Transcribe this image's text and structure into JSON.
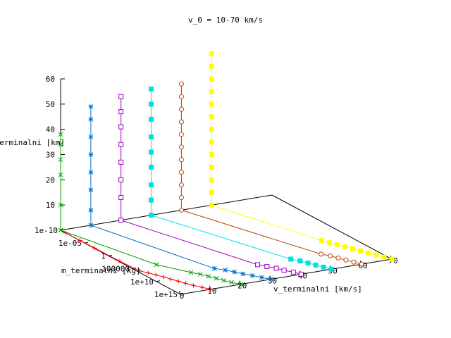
{
  "chart_data": {
    "type": "scatter",
    "title": "v_0 = 10-70 km/s",
    "xlabel": "v_terminalni [km/s]",
    "ylabel": "m_terminalni [kg]",
    "zlabel": "h_terminalni [km]",
    "x_ticks": [
      "0",
      "10",
      "20",
      "30",
      "40",
      "50",
      "60",
      "70"
    ],
    "y_ticks": [
      "1e-10",
      "1e-05",
      "1",
      "100000",
      "1e+10",
      "1e+15"
    ],
    "z_ticks": [
      "10",
      "20",
      "30",
      "40",
      "50",
      "60"
    ],
    "xlim": [
      0,
      70
    ],
    "ylim": [
      "1e-10",
      "1e+15"
    ],
    "zlim": [
      0,
      60
    ],
    "grid": false,
    "legend": "none",
    "series": [
      {
        "color": "#ff0000",
        "marker": "plus",
        "points": [
          {
            "v": 10.0,
            "m": "1e+15",
            "h": 0
          },
          {
            "v": 8.8,
            "m": "1e+14",
            "h": 0
          },
          {
            "v": 7.5,
            "m": "1e+13",
            "h": 0
          },
          {
            "v": 6.5,
            "m": "1e+12",
            "h": 0
          },
          {
            "v": 5.7,
            "m": "1e+11",
            "h": 0
          },
          {
            "v": 4.8,
            "m": "1e+10",
            "h": 0
          },
          {
            "v": 4.0,
            "m": "1e+09",
            "h": 0
          },
          {
            "v": 3.0,
            "m": "1e+08",
            "h": 0
          },
          {
            "v": 2.0,
            "m": "1e+07",
            "h": 0
          },
          {
            "v": 0.8,
            "m": "1e+06",
            "h": 0
          },
          {
            "v": 0.3,
            "m": "1e+02",
            "h": 0
          },
          {
            "v": 0.2,
            "m": "1e-03",
            "h": 0
          },
          {
            "v": 0.1,
            "m": "1e-06",
            "h": 0
          },
          {
            "v": 0.0,
            "m": "1e-09",
            "h": 0
          }
        ]
      },
      {
        "color": "#00a000",
        "marker": "cross",
        "points": [
          {
            "v": 20.0,
            "m": "1e+15",
            "h": 0
          },
          {
            "v": 18.5,
            "m": "1e+14",
            "h": 0
          },
          {
            "v": 17.5,
            "m": "1e+13",
            "h": 0
          },
          {
            "v": 16.6,
            "m": "1e+12",
            "h": 0
          },
          {
            "v": 15.6,
            "m": "1e+11",
            "h": 0
          },
          {
            "v": 14.5,
            "m": "1e+10",
            "h": 0
          },
          {
            "v": 13.0,
            "m": "1e+09",
            "h": 0
          },
          {
            "v": 8.0,
            "m": "1e+05",
            "h": 0
          },
          {
            "v": 0.0,
            "m": "1e-10",
            "h": 0
          },
          {
            "v": 0.0,
            "m": "1e-10",
            "h": 10
          },
          {
            "v": 0.0,
            "m": "1e-10",
            "h": 22
          },
          {
            "v": 0.0,
            "m": "1e-10",
            "h": 28
          },
          {
            "v": 0.0,
            "m": "1e-10",
            "h": 34
          },
          {
            "v": 0.0,
            "m": "1e-10",
            "h": 38
          }
        ]
      },
      {
        "color": "#0070d0",
        "marker": "star",
        "points": [
          {
            "v": 30.0,
            "m": "1e+15",
            "h": 0
          },
          {
            "v": 28.5,
            "m": "1e+14",
            "h": 0
          },
          {
            "v": 27.0,
            "m": "1e+13",
            "h": 0
          },
          {
            "v": 25.5,
            "m": "1e+12",
            "h": 0
          },
          {
            "v": 24.2,
            "m": "1e+11",
            "h": 0
          },
          {
            "v": 22.8,
            "m": "1e+10",
            "h": 0
          },
          {
            "v": 20.8,
            "m": "1e+09",
            "h": 0
          },
          {
            "v": 10.0,
            "m": "1e-10",
            "h": 0
          },
          {
            "v": 10.0,
            "m": "1e-10",
            "h": 6
          },
          {
            "v": 10.0,
            "m": "1e-10",
            "h": 14
          },
          {
            "v": 10.0,
            "m": "1e-10",
            "h": 21
          },
          {
            "v": 10.0,
            "m": "1e-10",
            "h": 28
          },
          {
            "v": 10.0,
            "m": "1e-10",
            "h": 35
          },
          {
            "v": 10.0,
            "m": "1e-10",
            "h": 42
          },
          {
            "v": 10.0,
            "m": "1e-10",
            "h": 47
          }
        ]
      },
      {
        "color": "#a000c0",
        "marker": "open-square",
        "points": [
          {
            "v": 40.0,
            "m": "1e+15",
            "h": 0
          },
          {
            "v": 39.0,
            "m": "1e+14",
            "h": 0
          },
          {
            "v": 37.5,
            "m": "1e+13",
            "h": 0
          },
          {
            "v": 36.5,
            "m": "1e+12",
            "h": 0
          },
          {
            "v": 35.0,
            "m": "1e+11",
            "h": 0
          },
          {
            "v": 33.5,
            "m": "1e+10",
            "h": 0
          },
          {
            "v": 20.0,
            "m": "1e-10",
            "h": 0
          },
          {
            "v": 20.0,
            "m": "1e-10",
            "h": 9
          },
          {
            "v": 20.0,
            "m": "1e-10",
            "h": 16
          },
          {
            "v": 20.0,
            "m": "1e-10",
            "h": 23
          },
          {
            "v": 20.0,
            "m": "1e-10",
            "h": 30
          },
          {
            "v": 20.0,
            "m": "1e-10",
            "h": 37
          },
          {
            "v": 20.0,
            "m": "1e-10",
            "h": 43
          },
          {
            "v": 20.0,
            "m": "1e-10",
            "h": 49
          }
        ]
      },
      {
        "color": "#00e0e0",
        "marker": "filled-square",
        "points": [
          {
            "v": 50.0,
            "m": "1e+15",
            "h": 0
          },
          {
            "v": 49.0,
            "m": "1e+14",
            "h": 0
          },
          {
            "v": 48.0,
            "m": "1e+13",
            "h": 0
          },
          {
            "v": 47.0,
            "m": "1e+12",
            "h": 0
          },
          {
            "v": 46.0,
            "m": "1e+11",
            "h": 0
          },
          {
            "v": 44.5,
            "m": "1e+10",
            "h": 0
          },
          {
            "v": 30.0,
            "m": "1e-10",
            "h": 0
          },
          {
            "v": 30.0,
            "m": "1e-10",
            "h": 6
          },
          {
            "v": 30.0,
            "m": "1e-10",
            "h": 12
          },
          {
            "v": 30.0,
            "m": "1e-10",
            "h": 19
          },
          {
            "v": 30.0,
            "m": "1e-10",
            "h": 25
          },
          {
            "v": 30.0,
            "m": "1e-10",
            "h": 31
          },
          {
            "v": 30.0,
            "m": "1e-10",
            "h": 38
          },
          {
            "v": 30.0,
            "m": "1e-10",
            "h": 44
          },
          {
            "v": 30.0,
            "m": "1e-10",
            "h": 50
          }
        ]
      },
      {
        "color": "#c04000",
        "marker": "open-circle",
        "points": [
          {
            "v": 60.0,
            "m": "1e+15",
            "h": 0
          },
          {
            "v": 59.0,
            "m": "1e+14",
            "h": 0
          },
          {
            "v": 58.0,
            "m": "1e+13",
            "h": 0
          },
          {
            "v": 57.0,
            "m": "1e+12",
            "h": 0
          },
          {
            "v": 56.0,
            "m": "1e+11",
            "h": 0
          },
          {
            "v": 54.5,
            "m": "1e+10",
            "h": 0
          },
          {
            "v": 40.0,
            "m": "1e-10",
            "h": 0
          },
          {
            "v": 40.0,
            "m": "1e-10",
            "h": 5
          },
          {
            "v": 40.0,
            "m": "1e-10",
            "h": 10
          },
          {
            "v": 40.0,
            "m": "1e-10",
            "h": 15
          },
          {
            "v": 40.0,
            "m": "1e-10",
            "h": 20
          },
          {
            "v": 40.0,
            "m": "1e-10",
            "h": 25
          },
          {
            "v": 40.0,
            "m": "1e-10",
            "h": 30
          },
          {
            "v": 40.0,
            "m": "1e-10",
            "h": 35
          },
          {
            "v": 40.0,
            "m": "1e-10",
            "h": 40
          },
          {
            "v": 40.0,
            "m": "1e-10",
            "h": 45
          },
          {
            "v": 40.0,
            "m": "1e-10",
            "h": 50
          }
        ]
      },
      {
        "color": "#ffff00",
        "marker": "filled-square",
        "points": [
          {
            "v": 70.0,
            "m": "1e+15",
            "h": 0
          },
          {
            "v": 69.0,
            "m": "1e+14",
            "h": 0
          },
          {
            "v": 68.0,
            "m": "1e+13",
            "h": 0
          },
          {
            "v": 67.0,
            "m": "1e+12",
            "h": 0
          },
          {
            "v": 66.0,
            "m": "1e+11",
            "h": 0
          },
          {
            "v": 65.0,
            "m": "1e+10",
            "h": 0
          },
          {
            "v": 64.0,
            "m": "1e+09",
            "h": 0
          },
          {
            "v": 63.0,
            "m": "1e+08",
            "h": 0
          },
          {
            "v": 62.0,
            "m": "1e+07",
            "h": 0
          },
          {
            "v": 61.0,
            "m": "1e+06",
            "h": 0
          },
          {
            "v": 50.0,
            "m": "1e-10",
            "h": 0
          },
          {
            "v": 50.0,
            "m": "1e-10",
            "h": 5
          },
          {
            "v": 50.0,
            "m": "1e-10",
            "h": 10
          },
          {
            "v": 50.0,
            "m": "1e-10",
            "h": 15
          },
          {
            "v": 50.0,
            "m": "1e-10",
            "h": 20
          },
          {
            "v": 50.0,
            "m": "1e-10",
            "h": 25
          },
          {
            "v": 50.0,
            "m": "1e-10",
            "h": 30
          },
          {
            "v": 50.0,
            "m": "1e-10",
            "h": 35
          },
          {
            "v": 50.0,
            "m": "1e-10",
            "h": 40
          },
          {
            "v": 50.0,
            "m": "1e-10",
            "h": 45
          },
          {
            "v": 50.0,
            "m": "1e-10",
            "h": 50
          },
          {
            "v": 50.0,
            "m": "1e-10",
            "h": 55
          },
          {
            "v": 50.0,
            "m": "1e-10",
            "h": 60
          }
        ]
      }
    ]
  }
}
